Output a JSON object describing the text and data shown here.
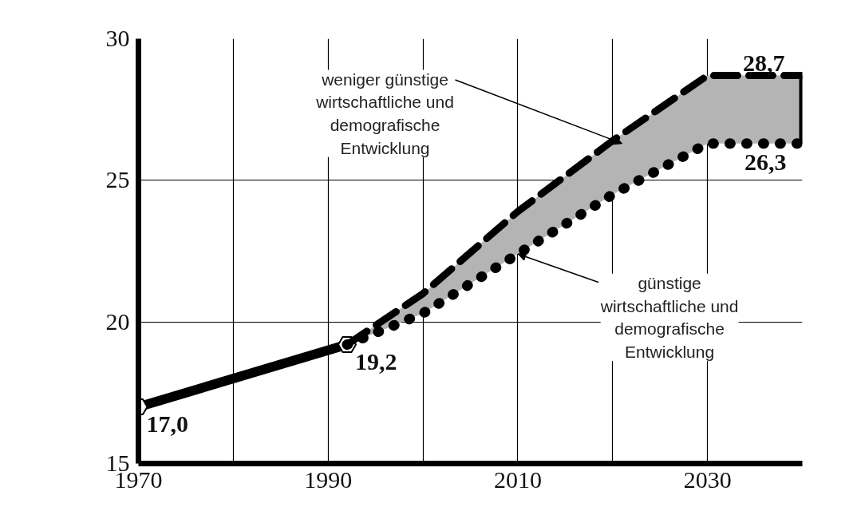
{
  "chart_data": {
    "type": "line",
    "x": [
      1970,
      1992,
      2000,
      2010,
      2020,
      2030,
      2040
    ],
    "series": [
      {
        "color": "#000000",
        "line_style": "solid",
        "marker": "circle",
        "values": [
          17.0,
          19.2,
          null,
          null,
          null,
          null,
          null
        ],
        "value_labels": [
          "17,0",
          "19,2",
          null,
          null,
          null,
          null,
          null
        ]
      },
      {
        "color": "#000000",
        "line_style": "dashed",
        "marker": "none",
        "values": [
          null,
          19.2,
          21.0,
          23.9,
          26.4,
          28.7,
          28.7
        ],
        "lower": [
          null,
          19.2,
          20.3,
          22.4,
          24.5,
          26.3,
          26.3
        ],
        "upper": [
          null,
          19.2,
          21.0,
          23.9,
          26.4,
          28.7,
          28.7
        ],
        "value_labels": [
          null,
          null,
          null,
          null,
          null,
          null,
          "28,7"
        ]
      },
      {
        "color": "#000000",
        "line_style": "dotted",
        "marker": "none",
        "values": [
          null,
          19.2,
          20.3,
          22.4,
          24.5,
          26.3,
          26.3
        ],
        "value_labels": [
          null,
          null,
          null,
          null,
          null,
          null,
          "26,3"
        ]
      }
    ],
    "xlim": [
      1970,
      2040
    ],
    "xticks": [
      1970,
      {
        "value": 1980,
        "label": null
      },
      1990,
      {
        "value": 2000,
        "label": null
      },
      2010,
      {
        "value": 2020,
        "label": null
      },
      2030
    ],
    "ylim": [
      15,
      30
    ],
    "yticks": [
      15,
      20,
      25,
      30
    ],
    "grid": true,
    "annotations": [
      {
        "text": "weniger günstige\nwirtschaftliche und\ndemografische\nEntwicklung",
        "x": 2021,
        "y": 26.3
      },
      {
        "text": "günstige\nwirtschaftliche und\ndemografische\nEntwicklung",
        "x": 2010,
        "y": 22.4
      }
    ]
  }
}
